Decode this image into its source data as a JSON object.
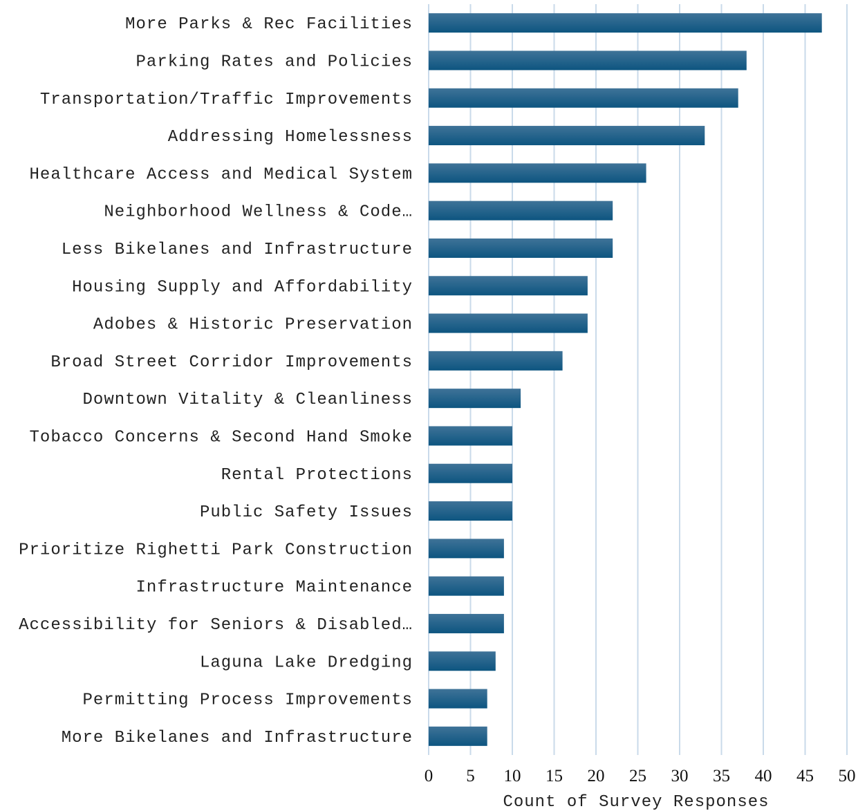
{
  "chart_data": {
    "type": "bar",
    "orientation": "horizontal",
    "categories": [
      "More Parks & Rec Facilities",
      "Parking Rates and Policies",
      "Transportation/Traffic Improvements",
      "Addressing Homelessness",
      "Healthcare Access and Medical System",
      "Neighborhood Wellness & Code…",
      "Less Bikelanes and Infrastructure",
      "Housing Supply and Affordability",
      "Adobes & Historic Preservation",
      "Broad Street Corridor Improvements",
      "Downtown Vitality & Cleanliness",
      "Tobacco Concerns & Second Hand Smoke",
      "Rental Protections",
      "Public Safety Issues",
      "Prioritize Righetti Park Construction",
      "Infrastructure Maintenance",
      "Accessibility for Seniors & Disabled…",
      "Laguna Lake Dredging",
      "Permitting Process Improvements",
      "More Bikelanes and Infrastructure"
    ],
    "values": [
      47,
      38,
      37,
      33,
      26,
      22,
      22,
      19,
      19,
      16,
      11,
      10,
      10,
      10,
      9,
      9,
      9,
      8,
      7,
      7
    ],
    "xlabel": "Count of Survey Responses",
    "ylabel": "",
    "title": "",
    "xlim": [
      0,
      50
    ],
    "xticks": [
      "0",
      "5",
      "10",
      "15",
      "20",
      "25",
      "30",
      "35",
      "40",
      "45",
      "50"
    ],
    "grid": "vertical",
    "legend": "none",
    "colors": {
      "bar_top": "#3f7398",
      "bar_bottom": "#0d5580",
      "grid": "#c9daea"
    }
  }
}
